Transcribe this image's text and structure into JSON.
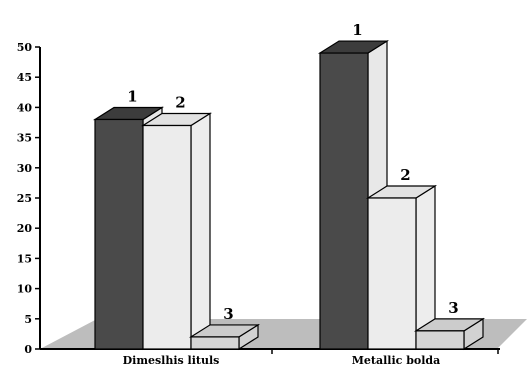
{
  "chart_data": {
    "type": "bar",
    "categories": [
      "Dimeslhis lituls",
      "Metallic bolda"
    ],
    "series": [
      {
        "name": "1",
        "values": [
          38,
          49
        ]
      },
      {
        "name": "2",
        "values": [
          37,
          25
        ]
      },
      {
        "name": "3",
        "values": [
          2,
          3
        ]
      }
    ],
    "bar_labels": [
      "1",
      "2",
      "3"
    ],
    "y_ticks": [
      "0",
      "5",
      "10",
      "15",
      "20",
      "25",
      "30",
      "35",
      "40",
      "45",
      "50"
    ],
    "ylim": [
      0,
      50
    ],
    "title": "",
    "xlabel": "",
    "ylabel": "",
    "grid": false,
    "legend": "none",
    "style": "3d-bar",
    "colors": {
      "series_front": [
        "#4a4a4a",
        "#ececec",
        "#d6d6d6"
      ],
      "series_side": [
        "#e8e8e8",
        "#ededed",
        "#d2d2d2"
      ],
      "series_top": [
        "#3c3c3c",
        "#e2e2e2",
        "#cccccc"
      ],
      "floor": "#bdbdbd",
      "axis": "#000000"
    }
  }
}
